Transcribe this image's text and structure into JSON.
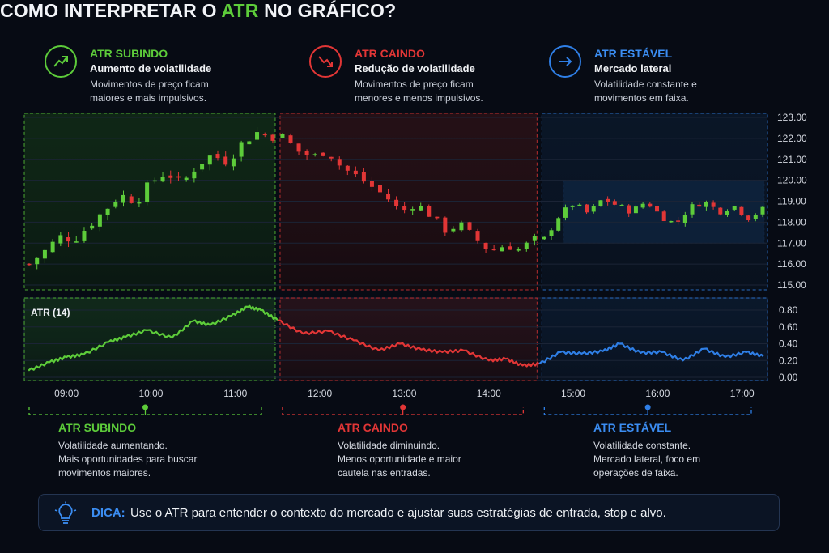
{
  "title": {
    "pre": "COMO INTERPRETAR O ",
    "highlight": "ATR",
    "post": " NO GRÁFICO?"
  },
  "colors": {
    "up": "#5dcc3a",
    "down": "#e23636",
    "stable": "#2f7fe6",
    "grid": "#1b2436",
    "text": "#e8ecf2"
  },
  "header_cards": [
    {
      "icon": "trend-up-icon",
      "heading": "ATR SUBINDO",
      "subheading": "Aumento de volatilidade",
      "desc_lines": [
        "Movimentos de preço ficam",
        "maiores e mais impulsivos."
      ],
      "color": "#5dcc3a"
    },
    {
      "icon": "trend-down-icon",
      "heading": "ATR CAINDO",
      "subheading": "Redução de volatilidade",
      "desc_lines": [
        "Movimentos de preço ficam",
        "menores e menos impulsivos."
      ],
      "color": "#e23636"
    },
    {
      "icon": "arrow-right-icon",
      "heading": "ATR ESTÁVEL",
      "subheading": "Mercado lateral",
      "desc_lines": [
        "Volatilidade constante e",
        "movimentos em faixa."
      ],
      "color": "#2f7fe6"
    }
  ],
  "annotations": [
    {
      "heading": "ATR SUBINDO",
      "lines": [
        "Volatilidade aumentando.",
        "Mais oportunidades para buscar",
        "movimentos maiores."
      ],
      "color": "#5dcc3a"
    },
    {
      "heading": "ATR CAINDO",
      "lines": [
        "Volatilidade diminuindo.",
        "Menos oportunidade e maior",
        "cautela nas entradas."
      ],
      "color": "#e23636"
    },
    {
      "heading": "ATR ESTÁVEL",
      "lines": [
        "Volatilidade constante.",
        "Mercado lateral, foco em",
        "operações de faixa."
      ],
      "color": "#2f7fe6"
    }
  ],
  "tip": {
    "label": "DICA:",
    "text": "Use o ATR para entender o contexto do mercado e ajustar suas estratégias de entrada, stop e alvo."
  },
  "chart_data": [
    {
      "type": "candlestick",
      "ylim": [
        115,
        123
      ],
      "y_ticks": [
        "115.00",
        "116.00",
        "117.00",
        "118.00",
        "119.00",
        "120.00",
        "121.00",
        "122.00",
        "123.00"
      ],
      "x_ticks": [
        "09:00",
        "10:00",
        "11:00",
        "12:00",
        "13:00",
        "14:00",
        "15:00",
        "16:00",
        "17:00"
      ],
      "x_tick_hours": [
        9,
        10,
        11,
        12,
        13,
        14,
        15,
        16,
        17
      ],
      "x_range_hours": [
        8.5,
        17.3
      ],
      "phases": [
        {
          "name": "ATR SUBINDO",
          "start_hour": 8.5,
          "end_hour": 11.5,
          "close_path": [
            116.0,
            116.6,
            117.3,
            117.2,
            117.9,
            118.6,
            119.3,
            119.0,
            119.9,
            120.4,
            119.8,
            120.7,
            121.2,
            120.9,
            121.8,
            122.3,
            122.1
          ]
        },
        {
          "name": "ATR CAINDO",
          "start_hour": 11.5,
          "end_hour": 14.6,
          "close_path": [
            122.1,
            121.4,
            121.1,
            121.4,
            120.6,
            120.2,
            119.7,
            119.2,
            118.5,
            118.9,
            118.3,
            117.6,
            117.9,
            117.2,
            116.6,
            116.9,
            116.7,
            117.2
          ]
        },
        {
          "name": "ATR ESTÁVEL",
          "start_hour": 14.6,
          "end_hour": 17.3,
          "close_path": [
            117.2,
            118.3,
            118.9,
            118.4,
            119.1,
            118.8,
            118.5,
            119.0,
            118.3,
            117.9,
            118.7,
            119.0,
            118.5,
            118.8,
            118.2,
            118.6
          ]
        }
      ],
      "range_box": [
        117.0,
        120.0
      ]
    },
    {
      "type": "line",
      "label": "ATR (14)",
      "ylim": [
        0,
        0.8
      ],
      "y_ticks": [
        "0.00",
        "0.20",
        "0.40",
        "0.60",
        "0.80"
      ],
      "series": [
        {
          "name": "ATR SUBINDO",
          "x_hours": [
            8.55,
            8.8,
            9.0,
            9.2,
            9.5,
            9.7,
            9.95,
            10.25,
            10.5,
            10.7,
            10.95,
            11.15,
            11.3,
            11.5
          ],
          "values": [
            0.08,
            0.18,
            0.24,
            0.27,
            0.42,
            0.48,
            0.56,
            0.47,
            0.67,
            0.62,
            0.73,
            0.84,
            0.8,
            0.68
          ]
        },
        {
          "name": "ATR CAINDO",
          "x_hours": [
            11.5,
            11.8,
            12.1,
            12.4,
            12.7,
            12.95,
            13.2,
            13.45,
            13.7,
            14.0,
            14.2,
            14.4,
            14.6
          ],
          "values": [
            0.68,
            0.52,
            0.55,
            0.44,
            0.32,
            0.4,
            0.33,
            0.3,
            0.32,
            0.2,
            0.22,
            0.14,
            0.16
          ]
        },
        {
          "name": "ATR ESTÁVEL",
          "x_hours": [
            14.6,
            14.85,
            15.1,
            15.35,
            15.55,
            15.8,
            16.05,
            16.3,
            16.55,
            16.8,
            17.05,
            17.25
          ],
          "values": [
            0.16,
            0.3,
            0.28,
            0.31,
            0.4,
            0.29,
            0.3,
            0.2,
            0.34,
            0.24,
            0.3,
            0.25
          ]
        }
      ]
    }
  ]
}
